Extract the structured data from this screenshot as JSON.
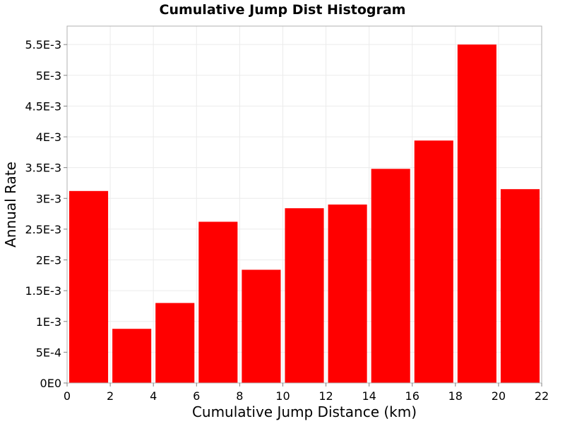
{
  "chart_data": {
    "type": "bar",
    "title": "Cumulative Jump Dist Histogram",
    "xlabel": "Cumulative Jump Distance (km)",
    "ylabel": "Annual Rate",
    "xlim": [
      0,
      22
    ],
    "ylim": [
      0,
      0.0058
    ],
    "x_ticks": [
      0,
      2,
      4,
      6,
      8,
      10,
      12,
      14,
      16,
      18,
      20,
      22
    ],
    "x_tick_labels": [
      "0",
      "2",
      "4",
      "6",
      "8",
      "10",
      "12",
      "14",
      "16",
      "18",
      "20",
      "22"
    ],
    "y_ticks": [
      0,
      0.0005,
      0.001,
      0.0015,
      0.002,
      0.0025,
      0.003,
      0.0035,
      0.004,
      0.0045,
      0.005,
      0.0055
    ],
    "y_tick_labels": [
      "0E0",
      "5E-4",
      "1E-3",
      "1.5E-3",
      "2E-3",
      "2.5E-3",
      "3E-3",
      "3.5E-3",
      "4E-3",
      "4.5E-3",
      "5E-3",
      "5.5E-3"
    ],
    "bar_width": 2,
    "x": [
      1,
      3,
      5,
      7,
      9,
      11,
      13,
      15,
      17,
      19,
      21
    ],
    "values": [
      0.00312,
      0.00088,
      0.0013,
      0.00262,
      0.00184,
      0.00284,
      0.0029,
      0.00348,
      0.00394,
      0.0055,
      0.00315
    ],
    "bar_color": "#ff0000",
    "grid": true,
    "grid_color": "#ebebeb"
  }
}
